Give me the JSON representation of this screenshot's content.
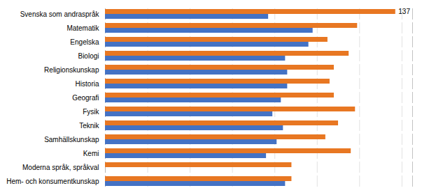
{
  "chart_data": {
    "type": "bar",
    "orientation": "horizontal",
    "categories": [
      "Svenska som andraspråk",
      "Matematik",
      "Engelska",
      "Biologi",
      "Religionskunskap",
      "Historia",
      "Geografi",
      "Fysik",
      "Teknik",
      "Samhällskunskap",
      "Kemi",
      "Moderna språk, språkval",
      "Hem- och konsumentkunskap"
    ],
    "series": [
      {
        "color": "#E87722",
        "values": [
          137,
          119,
          105,
          115,
          108,
          106,
          108,
          118,
          110,
          104,
          116,
          88,
          88
        ]
      },
      {
        "color": "#4472C4",
        "values": [
          77,
          98,
          96,
          85,
          86,
          86,
          83,
          79,
          84,
          81,
          76,
          0,
          85
        ]
      }
    ],
    "xlim": [
      0,
      145
    ],
    "xticks": [
      0,
      20,
      40,
      60,
      80,
      100,
      120,
      140
    ],
    "grid": true,
    "tick_labels": "y",
    "annotations": [
      {
        "text": "137",
        "category": "Svenska som andraspråk",
        "value": 137
      }
    ]
  }
}
